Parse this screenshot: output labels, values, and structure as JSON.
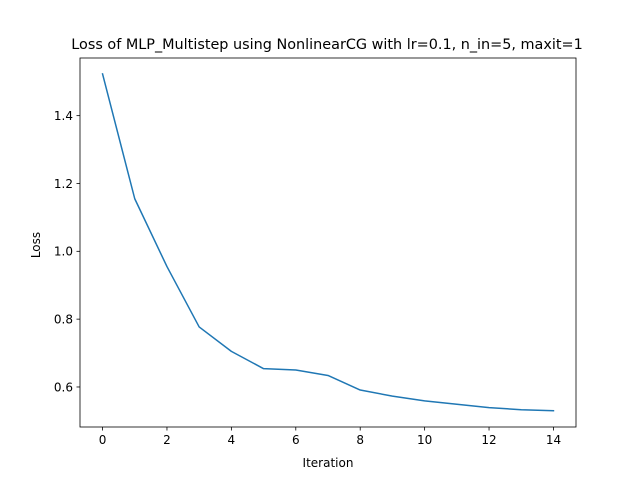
{
  "chart_data": {
    "type": "line",
    "title": "Loss of MLP_Multistep using NonlinearCG with lr=0.1, n_in=5, maxit=1",
    "xlabel": "Iteration",
    "ylabel": "Loss",
    "xlim": [
      -0.7,
      14.7
    ],
    "ylim": [
      0.482,
      1.57
    ],
    "xticks": [
      0,
      2,
      4,
      6,
      8,
      10,
      12,
      14
    ],
    "xtick_labels": [
      "0",
      "2",
      "4",
      "6",
      "8",
      "10",
      "12",
      "14"
    ],
    "yticks": [
      0.6,
      0.8,
      1.0,
      1.2,
      1.4
    ],
    "ytick_labels": [
      "0.6",
      "0.8",
      "1.0",
      "1.2",
      "1.4"
    ],
    "grid": false,
    "legend": "none",
    "series": [
      {
        "color": "#1f77b4",
        "x": [
          0,
          1,
          2,
          3,
          4,
          5,
          6,
          7,
          8,
          9,
          10,
          11,
          12,
          13,
          14
        ],
        "y": [
          1.523,
          1.155,
          0.955,
          0.777,
          0.705,
          0.654,
          0.65,
          0.634,
          0.591,
          0.573,
          0.559,
          0.549,
          0.539,
          0.533,
          0.53
        ]
      }
    ]
  }
}
